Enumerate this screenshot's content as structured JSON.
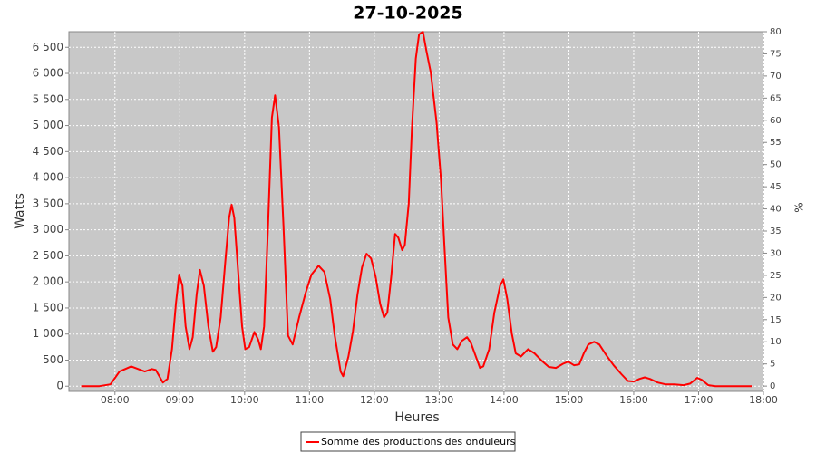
{
  "chart_data": {
    "type": "line",
    "title": "27-10-2025",
    "x_label": "Heures",
    "y_label": "Watts",
    "y2_label": "%",
    "x": [
      7.48,
      7.76,
      7.93,
      8.07,
      8.25,
      8.46,
      8.57,
      8.63,
      8.74,
      8.81,
      8.88,
      8.94,
      8.99,
      9.04,
      9.09,
      9.15,
      9.2,
      9.26,
      9.31,
      9.37,
      9.44,
      9.51,
      9.56,
      9.63,
      9.7,
      9.76,
      9.8,
      9.84,
      9.9,
      9.96,
      10.01,
      10.07,
      10.15,
      10.21,
      10.25,
      10.3,
      10.36,
      10.42,
      10.47,
      10.53,
      10.6,
      10.67,
      10.74,
      10.84,
      10.94,
      11.03,
      11.14,
      11.23,
      11.32,
      11.39,
      11.48,
      11.52,
      11.6,
      11.67,
      11.74,
      11.81,
      11.88,
      11.95,
      12.02,
      12.09,
      12.15,
      12.2,
      12.26,
      12.32,
      12.37,
      12.43,
      12.47,
      12.53,
      12.58,
      12.64,
      12.69,
      12.75,
      12.8,
      12.87,
      12.96,
      13.03,
      13.08,
      13.14,
      13.21,
      13.28,
      13.35,
      13.43,
      13.49,
      13.56,
      13.63,
      13.68,
      13.77,
      13.85,
      13.94,
      13.99,
      14.05,
      14.12,
      14.18,
      14.26,
      14.37,
      14.47,
      14.58,
      14.69,
      14.8,
      14.91,
      14.99,
      15.08,
      15.16,
      15.23,
      15.3,
      15.39,
      15.47,
      15.58,
      15.69,
      15.81,
      15.91,
      16.0,
      16.09,
      16.17,
      16.25,
      16.37,
      16.49,
      16.63,
      16.77,
      16.87,
      16.98,
      17.05,
      17.15,
      17.26,
      17.82
    ],
    "series": [
      {
        "name": "Somme des productions des onduleurs",
        "color": "#ff0000",
        "values": [
          0,
          0,
          35,
          280,
          380,
          280,
          330,
          310,
          70,
          140,
          710,
          1580,
          2140,
          1930,
          1150,
          710,
          940,
          1760,
          2230,
          1930,
          1150,
          660,
          750,
          1320,
          2370,
          3230,
          3480,
          3230,
          2190,
          1150,
          710,
          750,
          1040,
          890,
          710,
          1150,
          3060,
          5150,
          5580,
          4970,
          3060,
          970,
          800,
          1320,
          1790,
          2140,
          2310,
          2190,
          1670,
          970,
          280,
          190,
          570,
          1060,
          1760,
          2280,
          2540,
          2450,
          2100,
          1580,
          1320,
          1410,
          2100,
          2920,
          2850,
          2610,
          2710,
          3500,
          4970,
          6280,
          6750,
          6800,
          6450,
          6020,
          5060,
          3930,
          2710,
          1320,
          800,
          710,
          870,
          940,
          830,
          590,
          350,
          380,
          710,
          1410,
          1930,
          2050,
          1670,
          1010,
          630,
          570,
          710,
          630,
          490,
          370,
          350,
          430,
          470,
          400,
          420,
          630,
          800,
          850,
          800,
          590,
          400,
          230,
          100,
          90,
          140,
          170,
          140,
          70,
          35,
          35,
          20,
          50,
          160,
          120,
          20,
          0,
          0
        ]
      }
    ],
    "xlim": [
      7.29,
      18.0
    ],
    "xticks": [
      {
        "value": 8,
        "label": "08:00"
      },
      {
        "value": 9,
        "label": "09:00"
      },
      {
        "value": 10,
        "label": "10:00"
      },
      {
        "value": 11,
        "label": "11:00"
      },
      {
        "value": 12,
        "label": "12:00"
      },
      {
        "value": 13,
        "label": "13:00"
      },
      {
        "value": 14,
        "label": "14:00"
      },
      {
        "value": 15,
        "label": "15:00"
      },
      {
        "value": 16,
        "label": "16:00"
      },
      {
        "value": 17,
        "label": "17:00"
      },
      {
        "value": 18,
        "label": "18:00"
      }
    ],
    "ylim": [
      -100,
      6800
    ],
    "yticks": [
      0,
      500,
      {
        "value": 1000,
        "label": "1 000"
      },
      {
        "value": 1500,
        "label": "1 500"
      },
      {
        "value": 2000,
        "label": "2 000"
      },
      {
        "value": 2500,
        "label": "2 500"
      },
      {
        "value": 3000,
        "label": "3 000"
      },
      {
        "value": 3500,
        "label": "3 500"
      },
      {
        "value": 4000,
        "label": "4 000"
      },
      {
        "value": 4500,
        "label": "4 500"
      },
      {
        "value": 5000,
        "label": "5 000"
      },
      {
        "value": 5500,
        "label": "5 500"
      },
      {
        "value": 6000,
        "label": "6 000"
      },
      {
        "value": 6500,
        "label": "6 500"
      }
    ],
    "y2lim": [
      -1.2,
      80
    ],
    "y2ticks": [
      0,
      5,
      10,
      15,
      20,
      25,
      30,
      35,
      40,
      45,
      50,
      55,
      60,
      65,
      70,
      75,
      80
    ],
    "grid": true,
    "legend": "bottom"
  }
}
